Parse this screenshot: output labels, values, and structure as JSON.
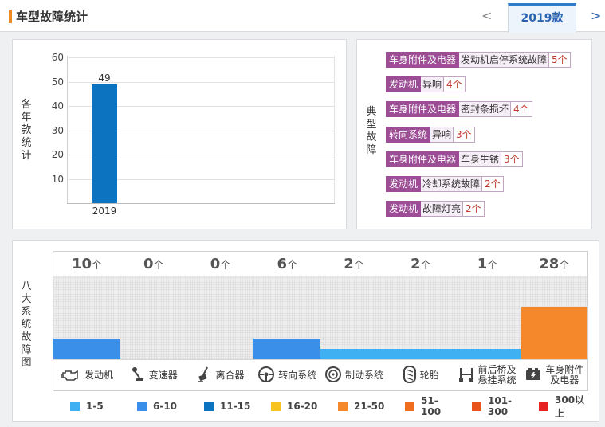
{
  "header": {
    "title": "车型故障统计",
    "prev_arrow": "<",
    "tab_label": "2019款",
    "next_arrow": ">"
  },
  "year_chart": {
    "ylabel": "各年款统计",
    "ticks": [
      "10",
      "20",
      "30",
      "40",
      "50",
      "60"
    ]
  },
  "chart_data": {
    "type": "bar",
    "categories": [
      "2019"
    ],
    "values": [
      49
    ],
    "ylabel": "各年款统计",
    "ylim": [
      0,
      60
    ],
    "grid": true
  },
  "typical": {
    "label": "典型故障",
    "faults": [
      {
        "category": "车身附件及电器",
        "name": "发动机启停系统故障",
        "count": "5个"
      },
      {
        "category": "发动机",
        "name": "异响",
        "count": "4个"
      },
      {
        "category": "车身附件及电器",
        "name": "密封条损坏",
        "count": "4个"
      },
      {
        "category": "转向系统",
        "name": "异响",
        "count": "3个"
      },
      {
        "category": "车身附件及电器",
        "name": "车身生锈",
        "count": "3个"
      },
      {
        "category": "发动机",
        "name": "冷却系统故障",
        "count": "2个"
      },
      {
        "category": "发动机",
        "name": "故障灯亮",
        "count": "2个"
      }
    ]
  },
  "systems": {
    "label": "八大系统故障图",
    "unit": "个",
    "items": [
      {
        "name": "发动机",
        "count": "10",
        "value": 10,
        "color": "#3a8fe8",
        "icon": "engine-icon"
      },
      {
        "name": "变速器",
        "count": "0",
        "value": 0,
        "color": "#3a8fe8",
        "icon": "gear-shift-icon"
      },
      {
        "name": "离合器",
        "count": "0",
        "value": 0,
        "color": "#3a8fe8",
        "icon": "clutch-pedal-icon"
      },
      {
        "name": "转向系统",
        "count": "6",
        "value": 6,
        "color": "#3a8fe8",
        "icon": "steering-wheel-icon"
      },
      {
        "name": "制动系统",
        "count": "2",
        "value": 2,
        "color": "#3fb1f2",
        "icon": "brake-disc-icon"
      },
      {
        "name": "轮胎",
        "count": "2",
        "value": 2,
        "color": "#3fb1f2",
        "icon": "tire-icon"
      },
      {
        "name": "前后桥及悬挂系统",
        "name_lines": [
          "前后桥及",
          "悬挂系统"
        ],
        "count": "1",
        "value": 1,
        "color": "#3fb1f2",
        "icon": "suspension-icon"
      },
      {
        "name": "车身附件及电器",
        "name_lines": [
          "车身附件",
          "及电器"
        ],
        "count": "28",
        "value": 28,
        "color": "#f5882a",
        "icon": "car-battery-icon"
      }
    ]
  },
  "legend": [
    {
      "label": "1-5",
      "color": "#3fb1f2"
    },
    {
      "label": "6-10",
      "color": "#3a8fe8"
    },
    {
      "label": "11-15",
      "color": "#0b73c0"
    },
    {
      "label": "16-20",
      "color": "#f7c323"
    },
    {
      "label": "21-50",
      "color": "#f5882a"
    },
    {
      "label": "51-100",
      "color": "#f06d1f"
    },
    {
      "label": "101-300",
      "color": "#e8531c"
    },
    {
      "label": "300以上",
      "color": "#e62222"
    }
  ]
}
